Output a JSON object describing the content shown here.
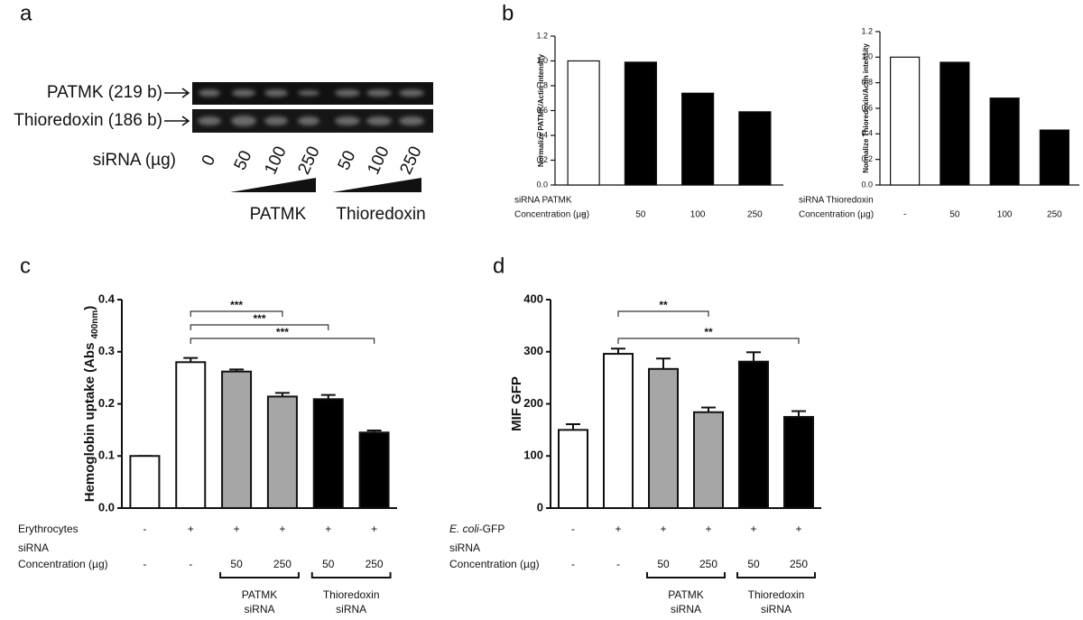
{
  "panels": [
    "a",
    "b",
    "c",
    "d"
  ],
  "panel_a": {
    "bands": [
      "PATMK (219 b)",
      "Thioredoxin (186 b)"
    ],
    "lane_title": "siRNA (µg)",
    "lanes": [
      "0",
      "50",
      "100",
      "250",
      "50",
      "100",
      "250"
    ],
    "groups": [
      "PATMK",
      "Thioredoxin"
    ]
  },
  "chart_data": [
    {
      "type": "bar",
      "y_label": "Normalize PATMK/Actin intensity",
      "categories": [
        "-",
        "50",
        "100",
        "250"
      ],
      "values": [
        1.0,
        0.99,
        0.74,
        0.59
      ],
      "colors": [
        "#ffffff",
        "#000000",
        "#000000",
        "#000000"
      ],
      "row_labels": [
        "siRNA PATMK",
        "Concentration (µg)"
      ],
      "ylim": [
        0,
        1.2
      ],
      "yticks": [
        {
          "value": 0,
          "label": "0.0"
        },
        {
          "value": 0.2,
          "label": "0.2"
        },
        {
          "value": 0.4,
          "label": "0.4"
        },
        {
          "value": 0.6,
          "label": "0.6"
        },
        {
          "value": 0.8,
          "label": "0.8"
        },
        {
          "value": 1.0,
          "label": "1.0"
        },
        {
          "value": 1.2,
          "label": "1.2"
        }
      ]
    },
    {
      "type": "bar",
      "y_label": "Normalize Thioredoxin/Actin intensity",
      "categories": [
        "-",
        "50",
        "100",
        "250"
      ],
      "values": [
        1.0,
        0.96,
        0.68,
        0.43
      ],
      "colors": [
        "#ffffff",
        "#000000",
        "#000000",
        "#000000"
      ],
      "row_labels": [
        "siRNA Thioredoxin",
        "Concentration (µg)"
      ],
      "ylim": [
        0,
        1.2
      ],
      "yticks": [
        {
          "value": 0,
          "label": "0.0"
        },
        {
          "value": 0.2,
          "label": "0.2"
        },
        {
          "value": 0.4,
          "label": "0.4"
        },
        {
          "value": 0.6,
          "label": "0.6"
        },
        {
          "value": 0.8,
          "label": "0.8"
        },
        {
          "value": 1.0,
          "label": "1.0"
        },
        {
          "value": 1.2,
          "label": "1.2"
        }
      ]
    },
    {
      "type": "bar",
      "y_label": [
        "Hemoglobin uptake (Abs ",
        "400nm",
        ")"
      ],
      "values": [
        0.1,
        0.28,
        0.262,
        0.214,
        0.209,
        0.145
      ],
      "errors": [
        0,
        0.008,
        0.004,
        0.007,
        0.008,
        0.004
      ],
      "colors": [
        "#ffffff",
        "#ffffff",
        "#a6a6a6",
        "#a6a6a6",
        "#000000",
        "#000000"
      ],
      "rows": [
        {
          "label": [
            "Erythrocytes"
          ],
          "values": [
            "-",
            "+",
            "+",
            "+",
            "+",
            "+"
          ]
        },
        {
          "label": [
            "siRNA",
            "Concentration (µg)"
          ],
          "values": [
            "-",
            "-",
            "50",
            "250",
            "50",
            "250"
          ]
        }
      ],
      "groups": [
        {
          "from": 2,
          "to": 3,
          "label": [
            "PATMK",
            "siRNA"
          ]
        },
        {
          "from": 4,
          "to": 5,
          "label": [
            "Thioredoxin",
            "siRNA"
          ]
        }
      ],
      "significance": [
        {
          "from": 1,
          "to": 3,
          "label": "***"
        },
        {
          "from": 1,
          "to": 4,
          "label": "***"
        },
        {
          "from": 1,
          "to": 5,
          "label": "***"
        }
      ],
      "ylim": [
        0,
        0.4
      ],
      "yticks": [
        {
          "value": 0,
          "label": "0.0"
        },
        0.1,
        0.2,
        0.3,
        0.4
      ]
    },
    {
      "type": "bar",
      "y_label": [
        "MIF GFP"
      ],
      "values": [
        150,
        296,
        267,
        184,
        281,
        175
      ],
      "errors": [
        11,
        10,
        20,
        9,
        18,
        11
      ],
      "colors": [
        "#ffffff",
        "#ffffff",
        "#a6a6a6",
        "#a6a6a6",
        "#000000",
        "#000000"
      ],
      "rows": [
        {
          "label": [
            "E. coli",
            "-GFP"
          ],
          "values": [
            "-",
            "+",
            "+",
            "+",
            "+",
            "+"
          ]
        },
        {
          "label": [
            "siRNA",
            "Concentration (µg)"
          ],
          "values": [
            "-",
            "-",
            "50",
            "250",
            "50",
            "250"
          ]
        }
      ],
      "groups": [
        {
          "from": 2,
          "to": 3,
          "label": [
            "PATMK",
            "siRNA"
          ]
        },
        {
          "from": 4,
          "to": 5,
          "label": [
            "Thioredoxin",
            "siRNA"
          ]
        }
      ],
      "significance": [
        {
          "from": 1,
          "to": 3,
          "label": "**"
        },
        {
          "from": 1,
          "to": 5,
          "label": "**"
        }
      ],
      "ylim": [
        0,
        400
      ],
      "yticks": [
        0,
        100,
        200,
        300,
        400
      ]
    }
  ]
}
